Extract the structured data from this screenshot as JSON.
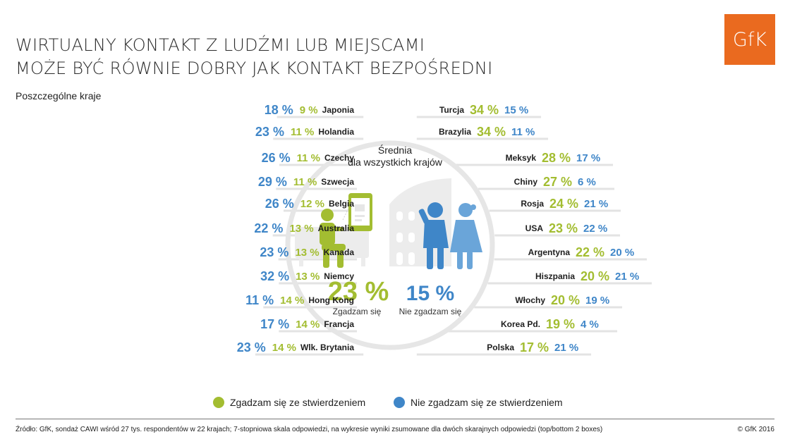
{
  "title_lines": [
    "WIRTUALNY KONTAKT Z LUDŹMI LUB MIEJSCAMI",
    "MOŻE BYĆ RÓWNIE DOBRY JAK KONTAKT BEZPOŚREDNI"
  ],
  "subtitle": "Poszczególne kraje",
  "logo": "GfK",
  "colors": {
    "agree": "#a3bd31",
    "disagree": "#3f86c8",
    "lines": "#e3e3e3",
    "illustration": "#ececec"
  },
  "center": {
    "heading_lines": [
      "Średnia",
      "dla wszystkich krajów"
    ],
    "agree_value": "23 %",
    "disagree_value": "15 %",
    "agree_label": "Zgadzam się",
    "disagree_label": "Nie zgadzam się"
  },
  "legend": {
    "agree": "Zgadzam się ze stwierdzeniem",
    "disagree": "Nie zgadzam się ze stwierdzeniem"
  },
  "footer": {
    "source": "Źródło: GfK, sondaż CAWI wśród 27 tys. respondentów w 22 krajach; 7-stopniowa skala odpowiedzi, na wykresie wyniki zsumowane dla dwóch skarajnych odpowiedzi (top/bottom 2 boxes)",
    "copyright": "© GfK 2016"
  },
  "chart_data": {
    "type": "table",
    "series": [
      {
        "name": "Zgadzam się ze stwierdzeniem",
        "key": "agree"
      },
      {
        "name": "Nie zgadzam się ze stwierdzeniem",
        "key": "disagree"
      }
    ],
    "average": {
      "agree": 23,
      "disagree": 15
    },
    "left": [
      {
        "country": "Japonia",
        "disagree": 18,
        "agree": 9,
        "disagree_label": "18 %",
        "agree_label": "9 %"
      },
      {
        "country": "Holandia",
        "disagree": 23,
        "agree": 11,
        "disagree_label": "23 %",
        "agree_label": "11 %"
      },
      {
        "country": "Czechy",
        "disagree": 26,
        "agree": 11,
        "disagree_label": "26 %",
        "agree_label": "11 %"
      },
      {
        "country": "Szwecja",
        "disagree": 29,
        "agree": 11,
        "disagree_label": "29 %",
        "agree_label": "11 %"
      },
      {
        "country": "Belgia",
        "disagree": 26,
        "agree": 12,
        "disagree_label": "26 %",
        "agree_label": "12 %"
      },
      {
        "country": "Australia",
        "disagree": 22,
        "agree": 13,
        "disagree_label": "22 %",
        "agree_label": "13 %"
      },
      {
        "country": "Kanada",
        "disagree": 23,
        "agree": 13,
        "disagree_label": "23 %",
        "agree_label": "13 %"
      },
      {
        "country": "Niemcy",
        "disagree": 32,
        "agree": 13,
        "disagree_label": "32 %",
        "agree_label": "13 %"
      },
      {
        "country": "Hong Kong",
        "disagree": 11,
        "agree": 14,
        "disagree_label": "11 %",
        "agree_label": "14 %"
      },
      {
        "country": "Francja",
        "disagree": 17,
        "agree": 14,
        "disagree_label": "17 %",
        "agree_label": "14 %"
      },
      {
        "country": "Wlk. Brytania",
        "disagree": 23,
        "agree": 14,
        "disagree_label": "23 %",
        "agree_label": "14 %"
      }
    ],
    "right": [
      {
        "country": "Turcja",
        "agree": 34,
        "disagree": 15,
        "agree_label": "34 %",
        "disagree_label": "15 %"
      },
      {
        "country": "Brazylia",
        "agree": 34,
        "disagree": 11,
        "agree_label": "34 %",
        "disagree_label": "11 %"
      },
      {
        "country": "Meksyk",
        "agree": 28,
        "disagree": 17,
        "agree_label": "28 %",
        "disagree_label": "17 %"
      },
      {
        "country": "Chiny",
        "agree": 27,
        "disagree": 6,
        "agree_label": "27 %",
        "disagree_label": "6 %"
      },
      {
        "country": "Rosja",
        "agree": 24,
        "disagree": 21,
        "agree_label": "24 %",
        "disagree_label": "21 %"
      },
      {
        "country": "USA",
        "agree": 23,
        "disagree": 22,
        "agree_label": "23 %",
        "disagree_label": "22 %"
      },
      {
        "country": "Argentyna",
        "agree": 22,
        "disagree": 20,
        "agree_label": "22 %",
        "disagree_label": "20 %"
      },
      {
        "country": "Hiszpania",
        "agree": 20,
        "disagree": 21,
        "agree_label": "20 %",
        "disagree_label": "21 %"
      },
      {
        "country": "Włochy",
        "agree": 20,
        "disagree": 19,
        "agree_label": "20 %",
        "disagree_label": "19 %"
      },
      {
        "country": "Korea Pd.",
        "agree": 19,
        "disagree": 4,
        "agree_label": "19 %",
        "disagree_label": "4 %"
      },
      {
        "country": "Polska",
        "agree": 17,
        "disagree": 21,
        "agree_label": "17 %",
        "disagree_label": "21 %"
      }
    ]
  }
}
